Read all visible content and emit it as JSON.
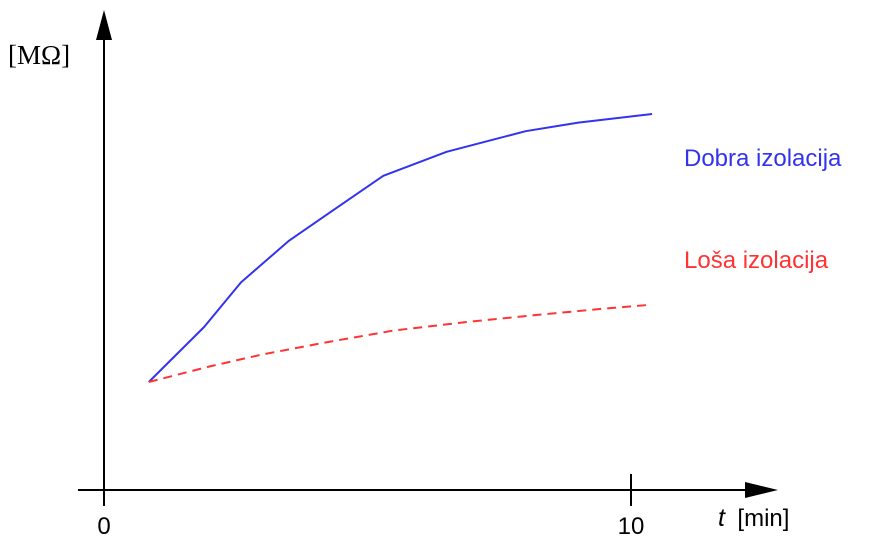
{
  "chart_data": {
    "type": "line",
    "title": "",
    "ylabel": "[MΩ]",
    "xlabel_symbol": "t",
    "xlabel_unit": "[min]",
    "x_ticks": [
      {
        "value": 0,
        "label": "0"
      },
      {
        "value": 10,
        "label": "10"
      }
    ],
    "xlim": [
      0,
      13
    ],
    "ylim": [
      0,
      100
    ],
    "grid": false,
    "series": [
      {
        "name": "Dobra izolacija",
        "color": "#3333ee",
        "style": "solid",
        "x": [
          0.85,
          1.9,
          2.6,
          3.5,
          4.35,
          5.3,
          6.5,
          8.0,
          9.0,
          10.4
        ],
        "y": [
          22,
          38,
          51,
          63,
          72,
          82,
          89,
          95,
          97.5,
          100
        ]
      },
      {
        "name": "Loša izolacija",
        "color": "#ff3333",
        "style": "dashed",
        "x": [
          0.85,
          2.0,
          3.0,
          4.2,
          5.5,
          6.9,
          8.2,
          9.6,
          10.4
        ],
        "y": [
          22,
          26.5,
          30,
          33.5,
          37,
          39.5,
          41.5,
          43.5,
          44.5
        ]
      }
    ]
  }
}
